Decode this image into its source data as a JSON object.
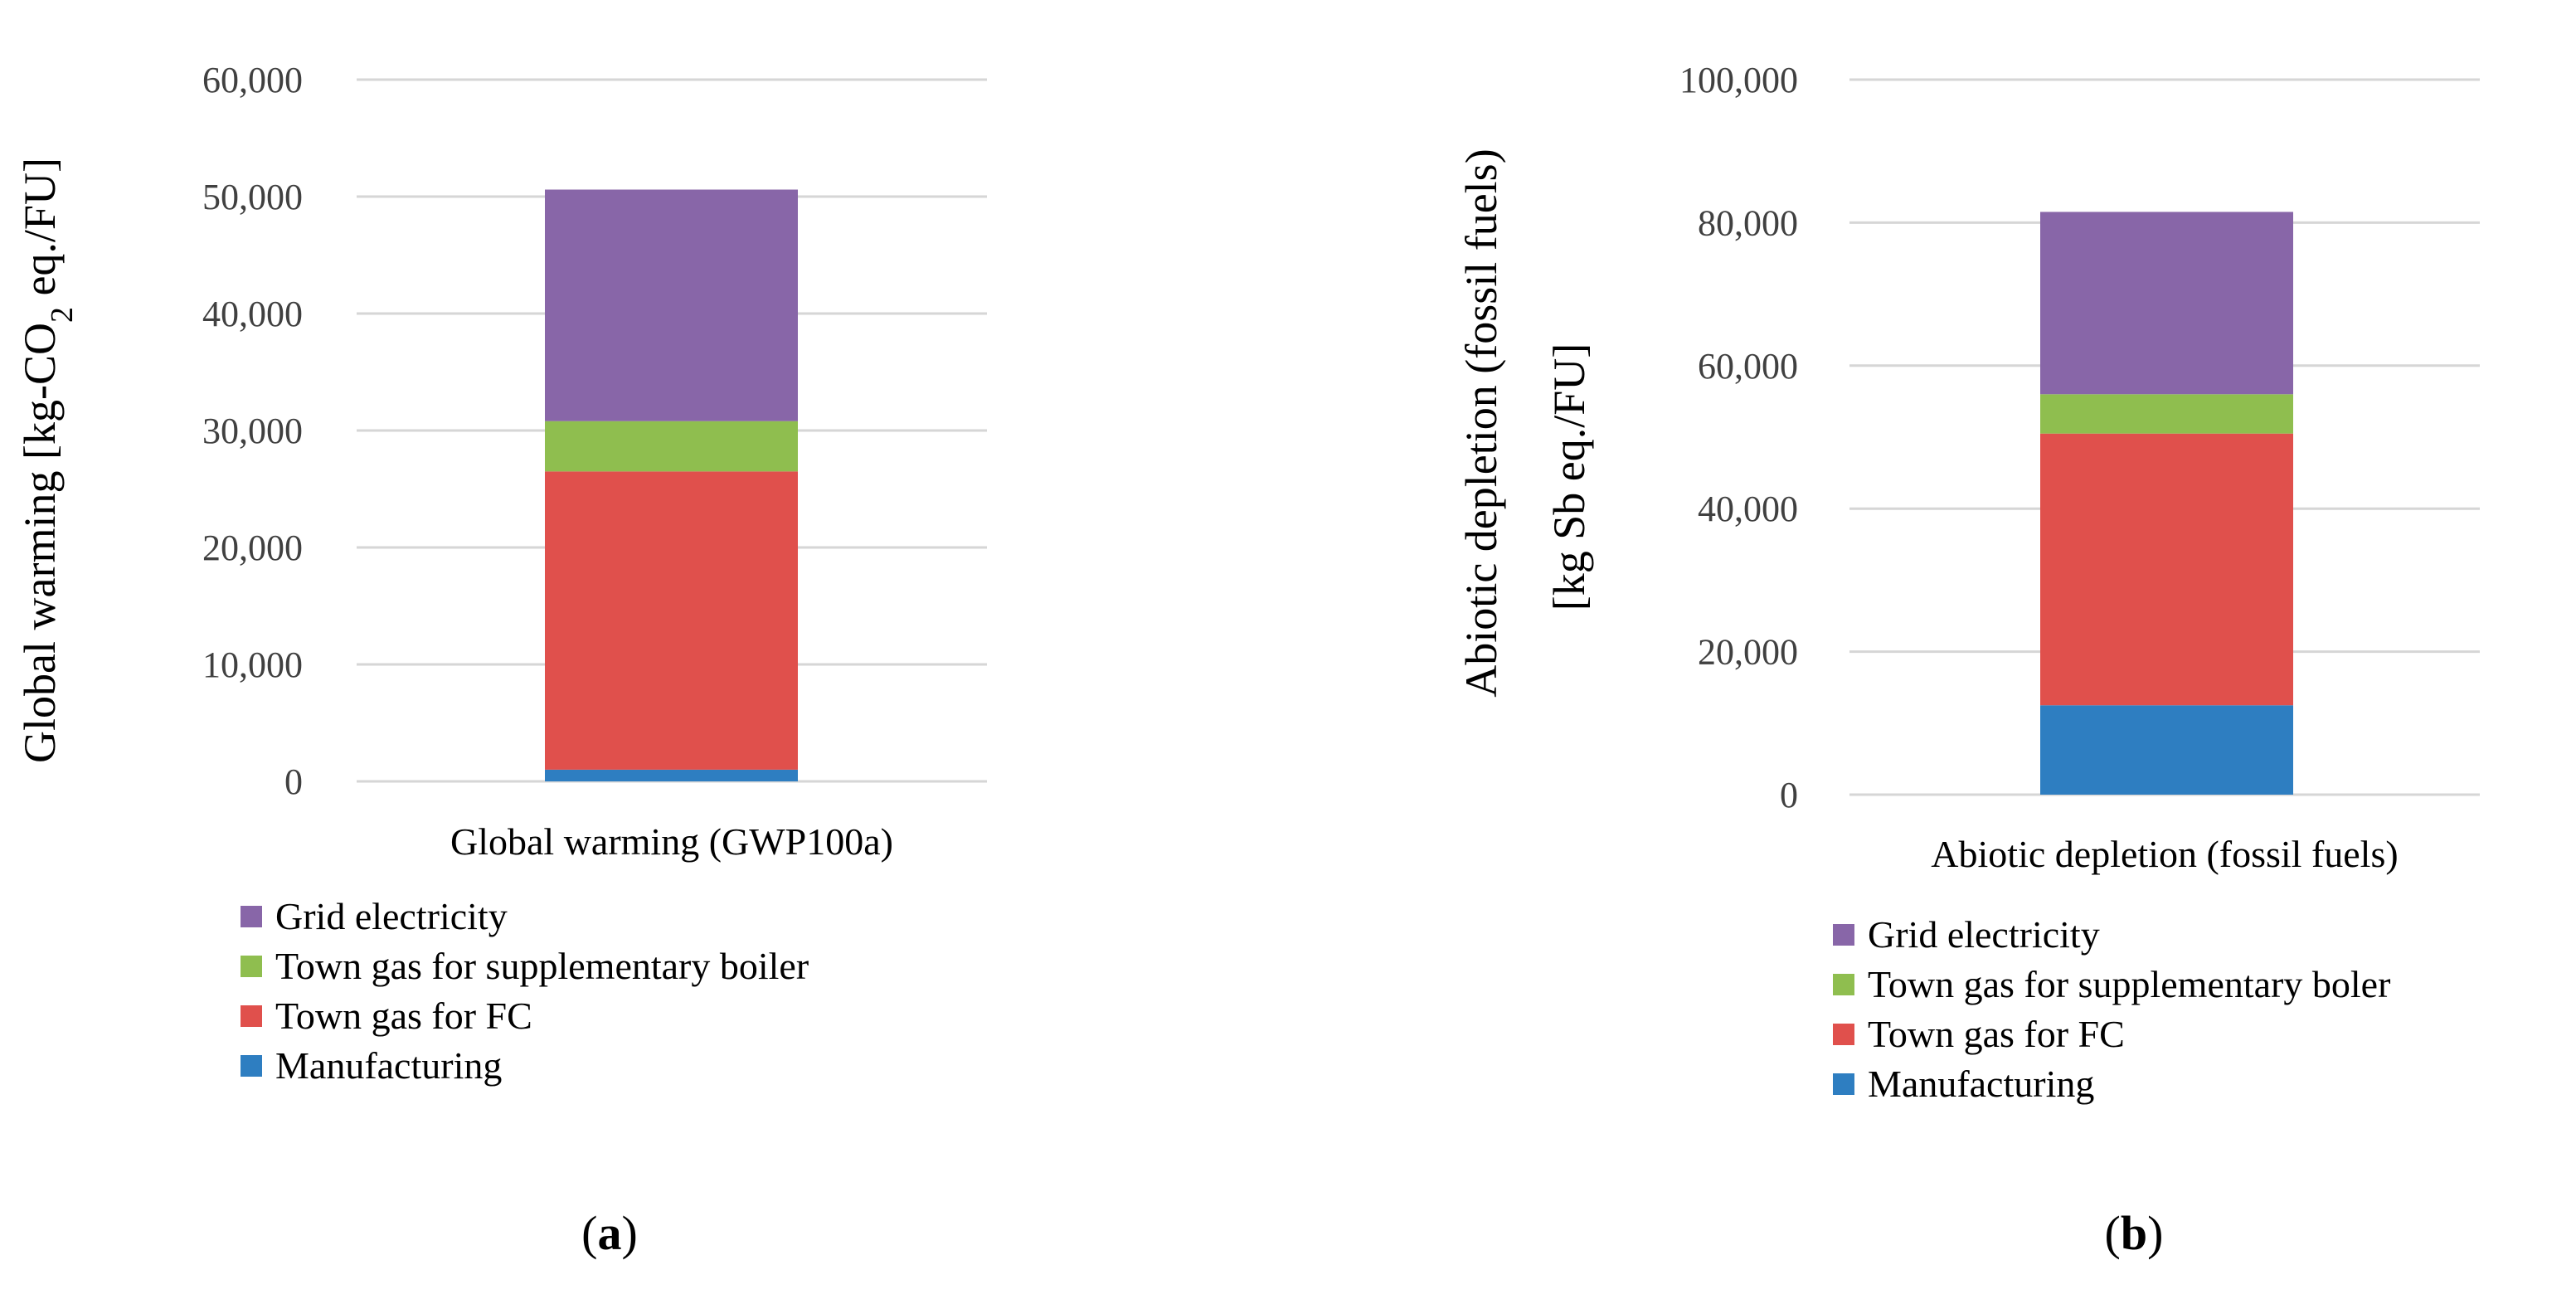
{
  "chart_data": [
    {
      "type": "bar",
      "stacked": true,
      "panel_label": "a",
      "categories": [
        "Global warming (GWP100a)"
      ],
      "ylabel_parts": [
        "Global warming [kg-CO",
        "2",
        " eq./FU]"
      ],
      "ylim": [
        0,
        60000
      ],
      "yticks": [
        0,
        10000,
        20000,
        30000,
        40000,
        50000,
        60000
      ],
      "ytick_labels": [
        "0",
        "10,000",
        "20,000",
        "30,000",
        "40,000",
        "50,000",
        "60,000"
      ],
      "grid": true,
      "legend_position": "bottom",
      "series": [
        {
          "name": "Manufacturing",
          "values": [
            1000
          ],
          "color": "#2e7ec1"
        },
        {
          "name": "Town gas for FC",
          "values": [
            25500
          ],
          "color": "#e0504c"
        },
        {
          "name": "Town gas for supplementary boiler",
          "values": [
            4300
          ],
          "color": "#8fbe4f"
        },
        {
          "name": "Grid electricity",
          "values": [
            19800
          ],
          "color": "#8866a8"
        }
      ]
    },
    {
      "type": "bar",
      "stacked": true,
      "panel_label": "b",
      "categories": [
        "Abiotic depletion (fossil fuels)"
      ],
      "ylabel_lines": [
        "Abiotic depletion (fossil fuels)",
        "[kg  Sb eq./FU]"
      ],
      "ylim": [
        0,
        100000
      ],
      "yticks": [
        0,
        20000,
        40000,
        60000,
        80000,
        100000
      ],
      "ytick_labels": [
        "0",
        "20,000",
        "40,000",
        "60,000",
        "80,000",
        "100,000"
      ],
      "grid": true,
      "legend_position": "bottom",
      "series": [
        {
          "name": "Manufacturing",
          "values": [
            12500
          ],
          "color": "#2e7ec1"
        },
        {
          "name": "Town gas for FC",
          "values": [
            38000
          ],
          "color": "#e0504c"
        },
        {
          "name": "Town gas for supplementary boler",
          "values": [
            5500
          ],
          "color": "#8fbe4f"
        },
        {
          "name": "Grid electricity",
          "values": [
            25500
          ],
          "color": "#8866a8"
        }
      ]
    }
  ]
}
